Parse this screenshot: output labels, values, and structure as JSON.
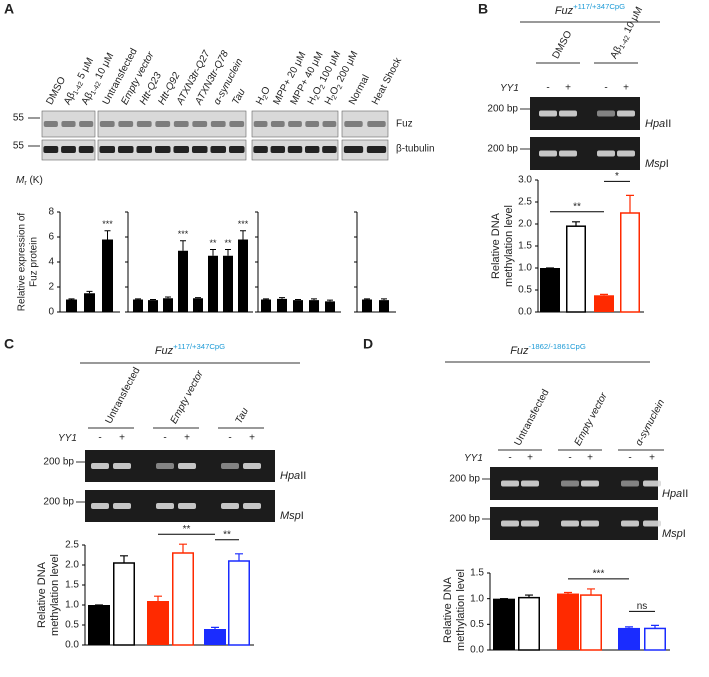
{
  "panels": [
    {
      "letter": "A",
      "blot": {
        "groups": [
          [
            [
              {
                "t": "DMSO"
              }
            ],
            [
              {
                "t": "Aβ"
              },
              {
                "t": "1-42",
                "sub": true
              },
              {
                "t": " 5 μM"
              }
            ],
            [
              {
                "t": "Aβ"
              },
              {
                "t": "1-42",
                "sub": true
              },
              {
                "t": " 10 μM"
              }
            ]
          ],
          [
            [
              {
                "t": "Untransfected"
              }
            ],
            [
              {
                "t": "Empty vector",
                "i": true
              }
            ],
            [
              {
                "t": "Htt-Q23",
                "i": true
              }
            ],
            [
              {
                "t": "Htt-Q92",
                "i": true
              }
            ],
            [
              {
                "t": "ATXN3tr-Q27",
                "i": true
              }
            ],
            [
              {
                "t": "ATXN3tr-Q78",
                "i": true
              }
            ],
            [
              {
                "t": "α-synuclein",
                "i": true
              }
            ],
            [
              {
                "t": "Tau",
                "i": true
              }
            ]
          ],
          [
            [
              {
                "t": "H"
              },
              {
                "t": "2",
                "sub": true
              },
              {
                "t": "O"
              }
            ],
            [
              {
                "t": "MPP+ 20 μM"
              }
            ],
            [
              {
                "t": "MPP+ 40 μM"
              }
            ],
            [
              {
                "t": "H"
              },
              {
                "t": "2",
                "sub": true
              },
              {
                "t": "O"
              },
              {
                "t": "2",
                "sub": true
              },
              {
                "t": " 100 μM"
              }
            ],
            [
              {
                "t": "H"
              },
              {
                "t": "2",
                "sub": true
              },
              {
                "t": "O"
              },
              {
                "t": "2",
                "sub": true
              },
              {
                "t": " 200 μM"
              }
            ]
          ],
          [
            [
              {
                "t": "Normal"
              }
            ],
            [
              {
                "t": "Heat Shock"
              }
            ]
          ]
        ],
        "markers": [
          "55",
          "55"
        ],
        "rows": [
          "Fuz",
          "β-tubulin"
        ],
        "mr": [
          {
            "t": "M",
            "i": true
          },
          {
            "t": "r",
            "sub": true
          },
          {
            "t": " (K)"
          }
        ]
      },
      "chart_data": {
        "type": "grouped-bar",
        "ylabel": [
          "Relative expression of",
          "Fuz protein"
        ],
        "ylim": [
          0,
          8
        ],
        "yticks": [
          0,
          2,
          4,
          6,
          8
        ],
        "color": "#000000",
        "groups": [
          {
            "values": [
              1.0,
              1.5,
              5.8
            ],
            "errors": [
              0.05,
              0.15,
              0.7
            ],
            "annotations": [
              null,
              null,
              "***"
            ]
          },
          {
            "values": [
              1.0,
              0.95,
              1.1,
              4.9,
              1.1,
              4.5,
              4.5,
              5.8
            ],
            "errors": [
              0.05,
              0.05,
              0.1,
              0.8,
              0.05,
              0.5,
              0.5,
              0.7
            ],
            "annotations": [
              null,
              null,
              null,
              "***",
              null,
              "**",
              "**",
              "***"
            ]
          },
          {
            "values": [
              1.0,
              1.05,
              0.95,
              0.95,
              0.85
            ],
            "errors": [
              0.05,
              0.1,
              0.05,
              0.1,
              0.1
            ],
            "annotations": [
              null,
              null,
              null,
              null,
              null
            ]
          },
          {
            "values": [
              1.0,
              0.95
            ],
            "errors": [
              0.05,
              0.1
            ],
            "annotations": [
              null,
              null
            ]
          }
        ]
      }
    },
    {
      "letter": "B",
      "title": [
        {
          "t": "Fuz",
          "i": true
        },
        {
          "t": "+117/+347CpG",
          "sup": true,
          "color": "#1e9bd7"
        }
      ],
      "conditions": [
        [
          {
            "t": "DMSO"
          }
        ],
        [
          {
            "t": "Aβ"
          },
          {
            "t": "1-42",
            "sub": true
          },
          {
            "t": " 10 μM"
          }
        ]
      ],
      "yy1_label": [
        {
          "t": "YY1",
          "i": true
        }
      ],
      "yy1": [
        "-",
        "+",
        "-",
        "+"
      ],
      "gel_markers": [
        "200 bp",
        "200 bp"
      ],
      "gel_rows": [
        [
          {
            "t": "Hpa",
            "i": true
          },
          {
            "t": "II"
          }
        ],
        [
          {
            "t": "Msp",
            "i": true
          },
          {
            "t": "I"
          }
        ]
      ],
      "chart_data": {
        "type": "bar",
        "ylabel": [
          "Relative DNA",
          "methylation level"
        ],
        "ylim": [
          0,
          3
        ],
        "yticks": [
          {
            "value": 0,
            "label": "0.0"
          },
          {
            "value": 0.5,
            "label": "0.5"
          },
          {
            "value": 1,
            "label": "1.0"
          },
          {
            "value": 1.5,
            "label": "1.5"
          },
          {
            "value": 2,
            "label": "2.0"
          },
          {
            "value": 2.5,
            "label": "2.5"
          },
          {
            "value": 3,
            "label": "3.0"
          }
        ],
        "values": [
          1.0,
          1.95,
          0.38,
          2.25
        ],
        "errors": [
          0,
          0.1,
          0.02,
          0.4
        ],
        "colors": [
          "#000000",
          "#000000",
          "#ff2a00",
          "#ff2a00"
        ],
        "open": [
          false,
          true,
          false,
          true
        ],
        "brackets": [
          {
            "from": 0,
            "to": 2,
            "label": "**"
          },
          {
            "from": 2,
            "to": 3,
            "label": "*"
          }
        ]
      }
    },
    {
      "letter": "C",
      "title": [
        {
          "t": "Fuz",
          "i": true
        },
        {
          "t": "+117/+347CpG",
          "sup": true,
          "color": "#1e9bd7"
        }
      ],
      "conditions": [
        [
          {
            "t": "Untransfected"
          }
        ],
        [
          {
            "t": "Empty vector",
            "i": true
          }
        ],
        [
          {
            "t": "Tau",
            "i": true
          }
        ]
      ],
      "yy1_label": [
        {
          "t": "YY1",
          "i": true
        }
      ],
      "yy1": [
        "-",
        "+",
        "-",
        "+",
        "-",
        "+"
      ],
      "gel_markers": [
        "200 bp",
        "200 bp"
      ],
      "gel_rows": [
        [
          {
            "t": "Hpa",
            "i": true
          },
          {
            "t": "II"
          }
        ],
        [
          {
            "t": "Msp",
            "i": true
          },
          {
            "t": "I"
          }
        ]
      ],
      "chart_data": {
        "type": "bar",
        "ylabel": [
          "Relative DNA",
          "methylation level"
        ],
        "ylim": [
          0,
          2.5
        ],
        "yticks": [
          {
            "value": 0,
            "label": "0.0"
          },
          {
            "value": 0.5,
            "label": "0.5"
          },
          {
            "value": 1,
            "label": "1.0"
          },
          {
            "value": 1.5,
            "label": "1.5"
          },
          {
            "value": 2,
            "label": "2.0"
          },
          {
            "value": 2.5,
            "label": "2.5"
          }
        ],
        "values": [
          1.0,
          2.05,
          1.1,
          2.3,
          0.4,
          2.1
        ],
        "errors": [
          0,
          0.18,
          0.12,
          0.22,
          0.04,
          0.18
        ],
        "colors": [
          "#000000",
          "#000000",
          "#ff2a00",
          "#ff2a00",
          "#1a2cff",
          "#1a2cff"
        ],
        "open": [
          false,
          true,
          false,
          true,
          false,
          true
        ],
        "brackets": [
          {
            "from": 2,
            "to": 4,
            "label": "**"
          },
          {
            "from": 4,
            "to": 5,
            "label": "**"
          }
        ]
      }
    },
    {
      "letter": "D",
      "title": [
        {
          "t": "Fuz",
          "i": true
        },
        {
          "t": "-1862/-1861CpG",
          "sup": true,
          "color": "#1e9bd7"
        }
      ],
      "conditions": [
        [
          {
            "t": "Untransfected"
          }
        ],
        [
          {
            "t": "Empty vector",
            "i": true
          }
        ],
        [
          {
            "t": "α-synuclein",
            "i": true
          }
        ]
      ],
      "yy1_label": [
        {
          "t": "YY1",
          "i": true
        }
      ],
      "yy1": [
        "-",
        "+",
        "-",
        "+",
        "-",
        "+"
      ],
      "gel_markers": [
        "200 bp",
        "200 bp"
      ],
      "gel_rows": [
        [
          {
            "t": "Hpa",
            "i": true
          },
          {
            "t": "II"
          }
        ],
        [
          {
            "t": "Msp",
            "i": true
          },
          {
            "t": "I"
          }
        ]
      ],
      "chart_data": {
        "type": "bar",
        "ylabel": [
          "Relative DNA",
          "methylation level"
        ],
        "ylim": [
          0,
          1.5
        ],
        "yticks": [
          {
            "value": 0,
            "label": "0.0"
          },
          {
            "value": 0.5,
            "label": "0.5"
          },
          {
            "value": 1,
            "label": "1.0"
          },
          {
            "value": 1.5,
            "label": "1.5"
          }
        ],
        "values": [
          1.0,
          1.02,
          1.1,
          1.07,
          0.43,
          0.42
        ],
        "errors": [
          0,
          0.05,
          0.02,
          0.12,
          0.02,
          0.06
        ],
        "colors": [
          "#000000",
          "#000000",
          "#ff2a00",
          "#ff2a00",
          "#1a2cff",
          "#1a2cff"
        ],
        "open": [
          false,
          true,
          false,
          true,
          false,
          true
        ],
        "brackets": [
          {
            "from": 2,
            "to": 4,
            "label": "***"
          },
          {
            "from": 4,
            "to": 5,
            "label": "ns"
          }
        ]
      }
    }
  ]
}
